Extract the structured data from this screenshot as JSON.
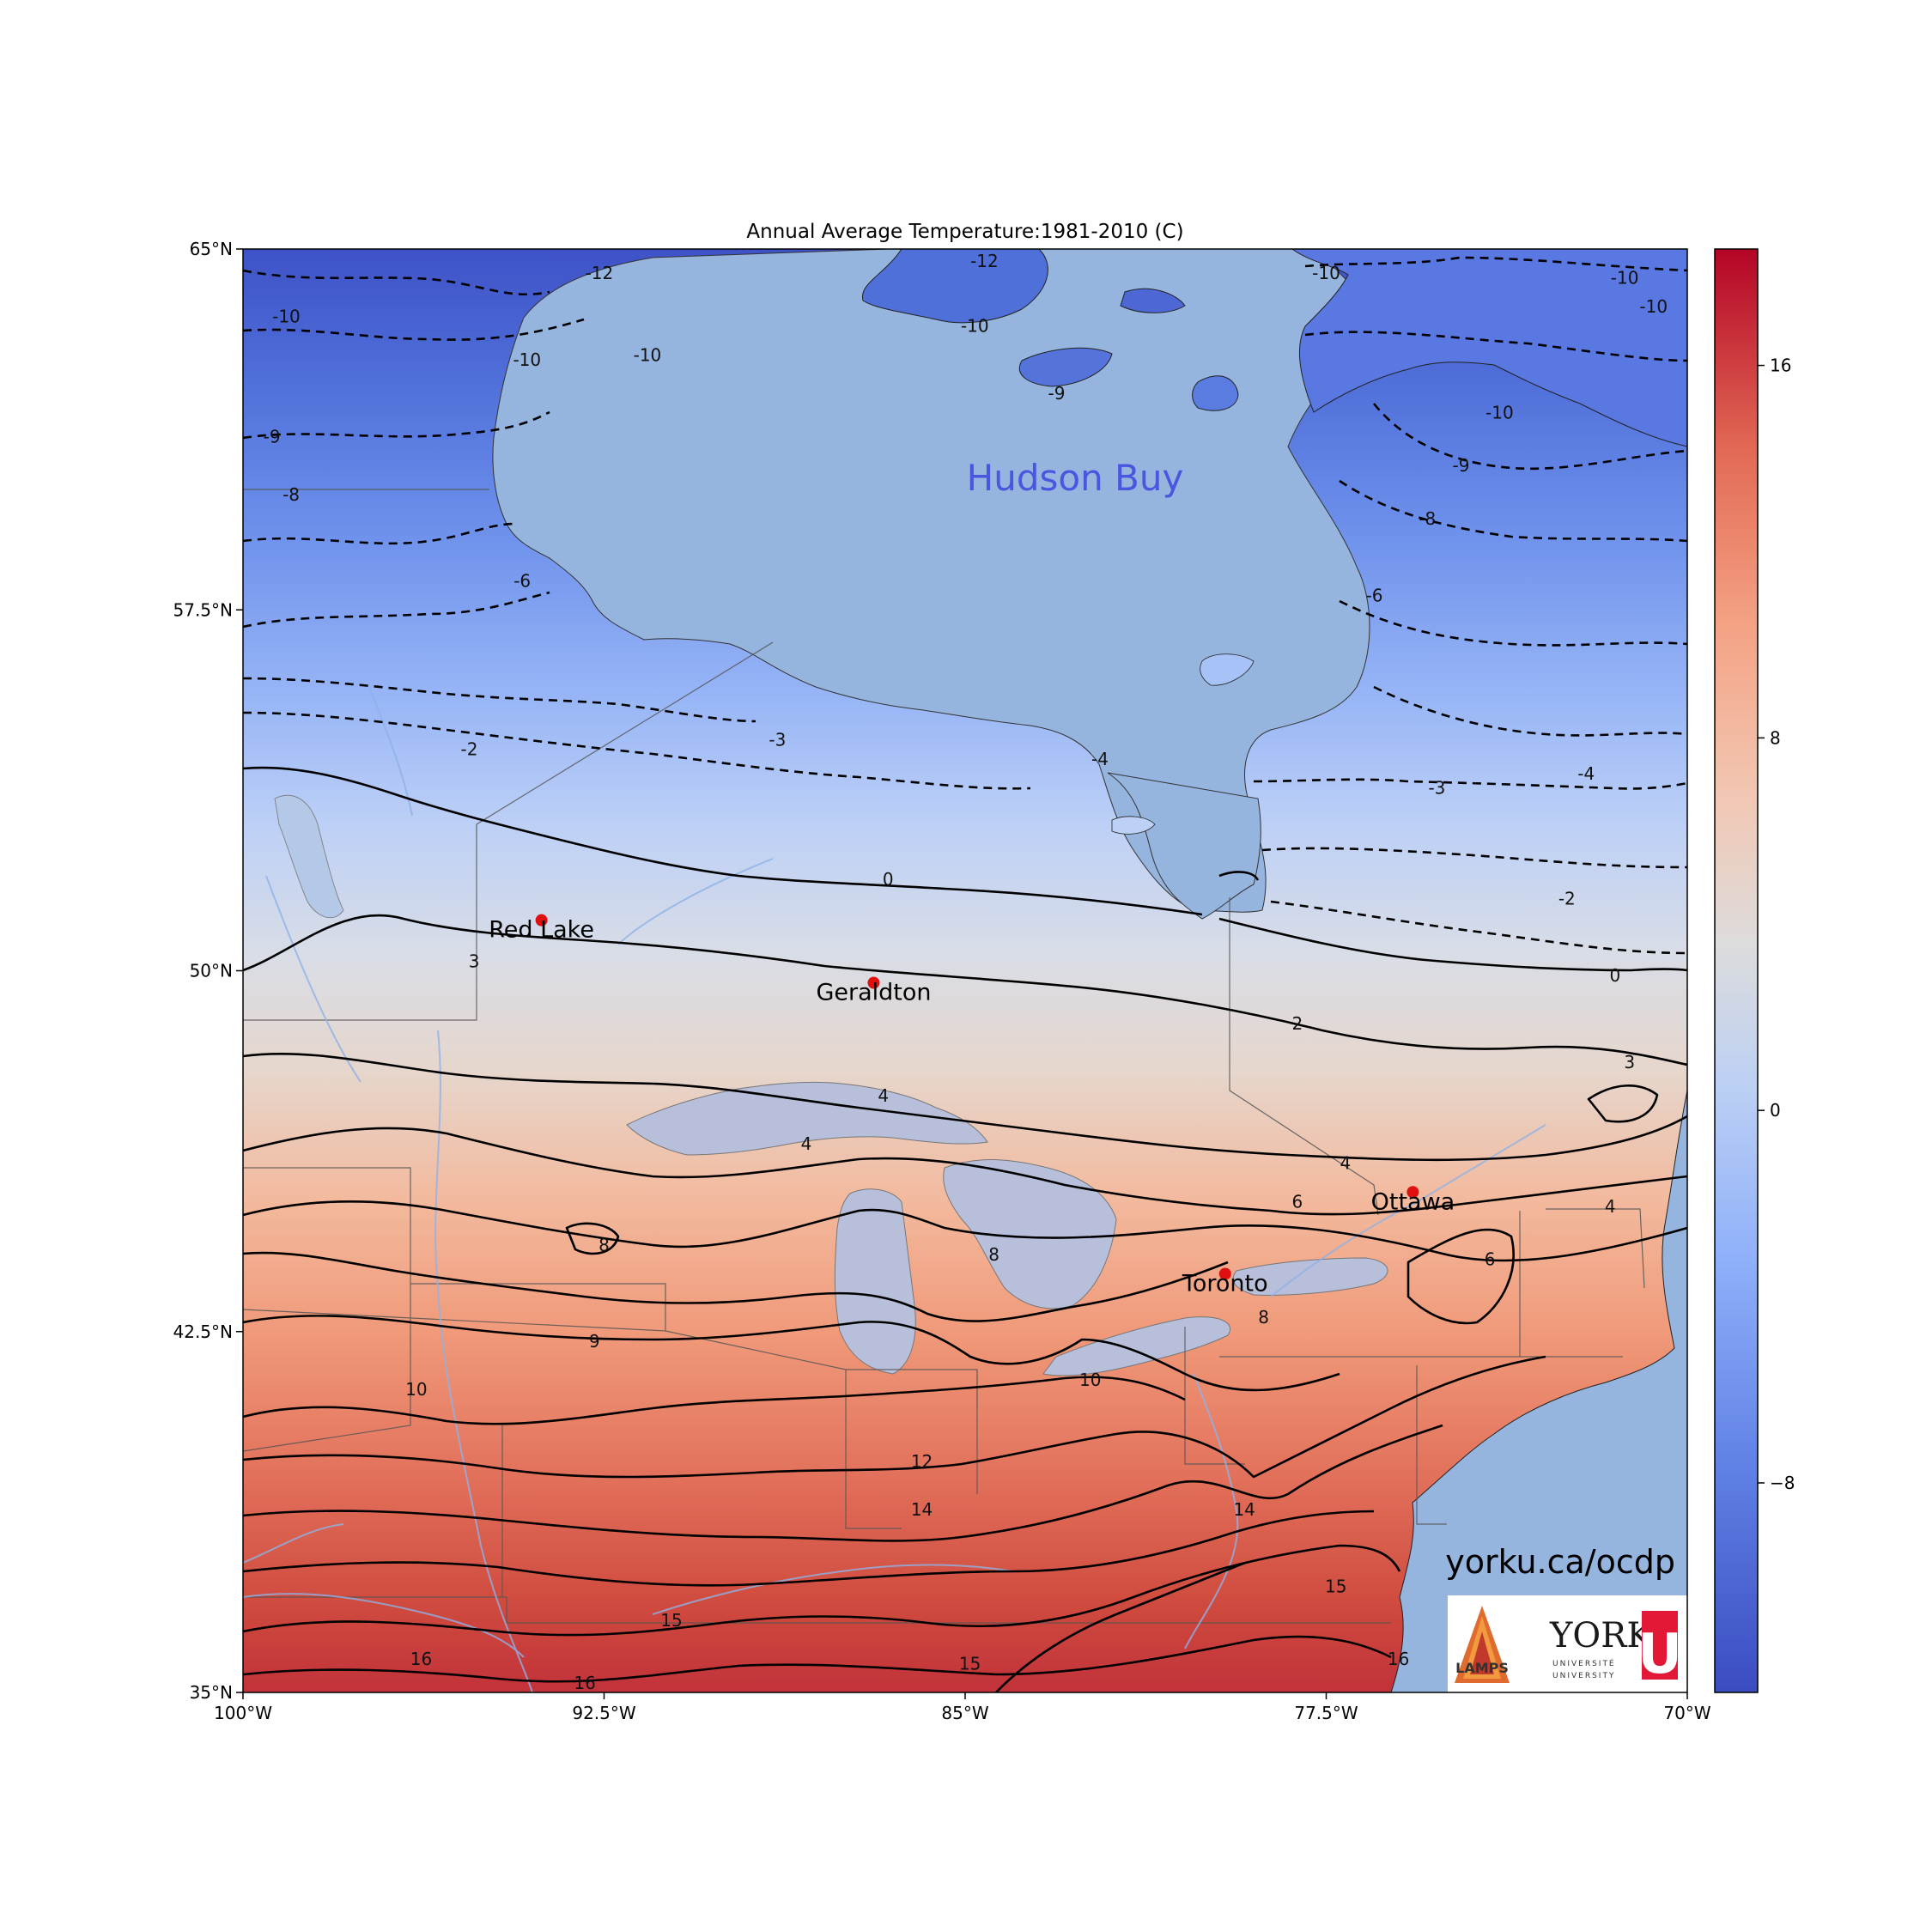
{
  "map": {
    "title": "Annual Average Temperature:1981-2010 (C)",
    "water_label": "Hudson Buy",
    "credit": "yorku.ca/ocdp",
    "extent": {
      "lon": [
        -100,
        -70
      ],
      "lat": [
        35,
        65
      ]
    },
    "lat_ticks": [
      {
        "value": 65,
        "label": "65°N"
      },
      {
        "value": 57.5,
        "label": "57.5°N"
      },
      {
        "value": 50,
        "label": "50°N"
      },
      {
        "value": 42.5,
        "label": "42.5°N"
      },
      {
        "value": 35,
        "label": "35°N"
      }
    ],
    "lon_ticks": [
      {
        "value": -100,
        "label": "100°W"
      },
      {
        "value": -92.5,
        "label": "92.5°W"
      },
      {
        "value": -85,
        "label": "85°W"
      },
      {
        "value": -77.5,
        "label": "77.5°W"
      },
      {
        "value": -70,
        "label": "70°W"
      }
    ],
    "cities": [
      {
        "name": "Red Lake",
        "lon": -93.8,
        "lat": 51.05
      },
      {
        "name": "Geraldton",
        "lon": -86.9,
        "lat": 49.75
      },
      {
        "name": "Ottawa",
        "lon": -75.7,
        "lat": 45.4
      },
      {
        "name": "Toronto",
        "lon": -79.6,
        "lat": 43.7
      }
    ],
    "contour_labels": [
      {
        "text": "-12",
        "lon": -92.6,
        "lat": 64.5
      },
      {
        "text": "-12",
        "lon": -84.6,
        "lat": 64.75
      },
      {
        "text": "-10",
        "lon": -99.1,
        "lat": 63.6
      },
      {
        "text": "-10",
        "lon": -94.1,
        "lat": 62.7
      },
      {
        "text": "-10",
        "lon": -91.6,
        "lat": 62.8
      },
      {
        "text": "-10",
        "lon": -84.8,
        "lat": 63.4
      },
      {
        "text": "-10",
        "lon": -77.5,
        "lat": 64.5
      },
      {
        "text": "-10",
        "lon": -71.3,
        "lat": 64.4
      },
      {
        "text": "-10",
        "lon": -70.7,
        "lat": 63.8
      },
      {
        "text": "-10",
        "lon": -73.9,
        "lat": 61.6
      },
      {
        "text": "-9",
        "lon": -99.4,
        "lat": 61.1
      },
      {
        "text": "-9",
        "lon": -83.1,
        "lat": 62.0
      },
      {
        "text": "-9",
        "lon": -74.7,
        "lat": 60.5
      },
      {
        "text": "-8",
        "lon": -99.0,
        "lat": 59.9
      },
      {
        "text": "-8",
        "lon": -75.4,
        "lat": 59.4
      },
      {
        "text": "-6",
        "lon": -94.2,
        "lat": 58.1
      },
      {
        "text": "-6",
        "lon": -76.5,
        "lat": 57.8
      },
      {
        "text": "-3",
        "lon": -88.9,
        "lat": 54.8
      },
      {
        "text": "-3",
        "lon": -75.2,
        "lat": 53.8
      },
      {
        "text": "-4",
        "lon": -82.2,
        "lat": 54.4
      },
      {
        "text": "-4",
        "lon": -72.1,
        "lat": 54.1
      },
      {
        "text": "-2",
        "lon": -95.3,
        "lat": 54.6
      },
      {
        "text": "-2",
        "lon": -72.5,
        "lat": 51.5
      },
      {
        "text": "0",
        "lon": -86.6,
        "lat": 51.9
      },
      {
        "text": "0",
        "lon": -71.5,
        "lat": 49.9
      },
      {
        "text": "2",
        "lon": -78.1,
        "lat": 48.9
      },
      {
        "text": "3",
        "lon": -95.2,
        "lat": 50.2
      },
      {
        "text": "3",
        "lon": -71.2,
        "lat": 48.1
      },
      {
        "text": "4",
        "lon": -86.7,
        "lat": 47.4
      },
      {
        "text": "4",
        "lon": -88.3,
        "lat": 46.4
      },
      {
        "text": "4",
        "lon": -77.1,
        "lat": 46.0
      },
      {
        "text": "4",
        "lon": -71.6,
        "lat": 45.1
      },
      {
        "text": "6",
        "lon": -78.1,
        "lat": 45.2
      },
      {
        "text": "6",
        "lon": -74.1,
        "lat": 44.0
      },
      {
        "text": "8",
        "lon": -92.5,
        "lat": 44.3
      },
      {
        "text": "8",
        "lon": -84.4,
        "lat": 44.1
      },
      {
        "text": "8",
        "lon": -78.8,
        "lat": 42.8
      },
      {
        "text": "9",
        "lon": -92.7,
        "lat": 42.3
      },
      {
        "text": "10",
        "lon": -96.4,
        "lat": 41.3
      },
      {
        "text": "10",
        "lon": -82.4,
        "lat": 41.5
      },
      {
        "text": "12",
        "lon": -85.9,
        "lat": 39.8
      },
      {
        "text": "14",
        "lon": -85.9,
        "lat": 38.8
      },
      {
        "text": "14",
        "lon": -79.2,
        "lat": 38.8
      },
      {
        "text": "15",
        "lon": -91.1,
        "lat": 36.5
      },
      {
        "text": "15",
        "lon": -77.3,
        "lat": 37.2
      },
      {
        "text": "15",
        "lon": -84.9,
        "lat": 35.6
      },
      {
        "text": "16",
        "lon": -96.3,
        "lat": 35.7
      },
      {
        "text": "16",
        "lon": -92.9,
        "lat": 35.2
      },
      {
        "text": "16",
        "lon": -76.0,
        "lat": 35.7
      }
    ]
  },
  "colorbar": {
    "range": [
      -12.5,
      18.5
    ],
    "ticks": [
      {
        "value": 16,
        "label": "16"
      },
      {
        "value": 8,
        "label": "8"
      },
      {
        "value": 0,
        "label": "0"
      },
      {
        "value": -8,
        "label": "−8"
      }
    ]
  },
  "logos": {
    "lamps_text": "LAMPS",
    "york_text": "YORK",
    "york_sub1": "UNIVERSITÉ",
    "york_sub2": "UNIVERSITY",
    "york_u": "U"
  }
}
